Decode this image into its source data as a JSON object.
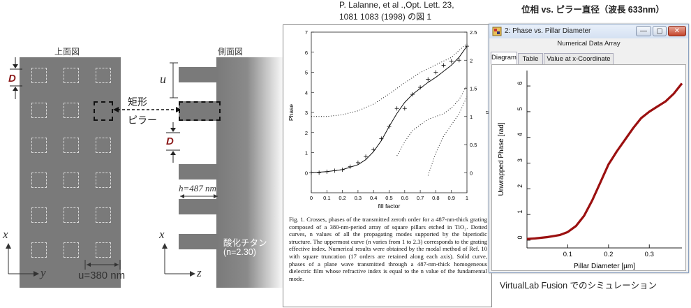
{
  "header": {
    "citation_line1": "P. Lalanne, et al .,Opt. Lett. 23,",
    "citation_line2": "1081 1083 (1998) の図 1",
    "right_title": "位相 vs. ピラー直径（波長 633nm）"
  },
  "top_view": {
    "title": "上面図",
    "d_label": "D",
    "x_axis": "x",
    "y_axis": "y",
    "period_label": "u=380 nm",
    "rows": 6,
    "cols": 3
  },
  "pillar_label": {
    "line1": "矩形",
    "line2": "ピラー"
  },
  "side_view": {
    "title": "側面図",
    "u_label": "u",
    "d_label": "D",
    "h_label": "h=487 nm",
    "x_axis": "x",
    "z_axis": "z",
    "material_line1": "酸化チタン",
    "material_line2": "(n=2.30)"
  },
  "paper_plot": {
    "xlabel": "fill factor",
    "ylabel_left": "Phase",
    "ylabel_right": "n",
    "x_ticks": [
      "0",
      "0.1",
      "0.2",
      "0.3",
      "0.4",
      "0.5",
      "0.6",
      "0.7",
      "0.8",
      "0.9",
      "1"
    ],
    "y_ticks_left": [
      "0",
      "1",
      "2",
      "3",
      "4",
      "5",
      "6",
      "7"
    ],
    "y_ticks_right": [
      "0",
      "0.5",
      "1",
      "1.5",
      "2",
      "2.5"
    ],
    "caption": "Fig. 1.   Crosses, phases of the transmitted zeroth order for a 487-nm-thick grating composed of a 380-nm-period array of square pillars etched in TiO₂.   Dotted curves, n values of all the propagating modes supported by the biperiodic structure.  The uppermost curve (n varies from 1 to 2.3) corresponds to the grating effective index.  Numerical results were obtained by the modal method of Ref. 10 with square truncation (17 orders are retained along each axis). Solid curve, phases of a plane wave transmitted through a 487-nm-thick homogeneous dielectric film whose refractive index is equal to the n value of the fundamental mode."
  },
  "app_window": {
    "title": "2: Phase vs. Pillar Diameter",
    "subtitle": "Numerical Data Array",
    "tabs": [
      "Diagram",
      "Table",
      "Value at x-Coordinate"
    ],
    "active_tab": 0,
    "btn_min": "—",
    "btn_max": "▢",
    "btn_close": "✕",
    "plot": {
      "xlabel": "Pillar Diameter [µm]",
      "ylabel": "Unwrapped Phase [rad]",
      "x_ticks": [
        "0.1",
        "0.2",
        "0.3"
      ],
      "y_ticks": [
        "0",
        "1",
        "2",
        "3",
        "4",
        "5",
        "6"
      ],
      "line_color": "#9b1010"
    }
  },
  "footer": {
    "sim_label": "VirtualLab Fusion でのシミュレーション"
  },
  "chart_data": [
    {
      "type": "scatter",
      "title": "",
      "xlabel": "fill factor",
      "ylabel": "Phase",
      "xlim": [
        0,
        1
      ],
      "ylim": [
        -1,
        7
      ],
      "ylim_right": [
        -0.357,
        2.5
      ],
      "series": [
        {
          "kind": "crosses",
          "x": [
            0,
            0.05,
            0.1,
            0.15,
            0.2,
            0.25,
            0.3,
            0.35,
            0.4,
            0.45,
            0.5,
            0.55,
            0.6,
            0.65,
            0.7,
            0.75,
            0.8,
            0.85,
            0.9,
            0.95,
            1.0
          ],
          "y": [
            0,
            0,
            0.05,
            0.1,
            0.15,
            0.3,
            0.5,
            0.8,
            1.15,
            1.7,
            2.3,
            3.2,
            3.2,
            3.9,
            4.25,
            4.65,
            5.0,
            5.35,
            5.55,
            5.6,
            6.3
          ]
        },
        {
          "kind": "solid",
          "x": [
            0,
            0.1,
            0.2,
            0.3,
            0.35,
            0.4,
            0.45,
            0.5,
            0.55,
            0.6,
            0.65,
            0.7,
            0.75,
            0.8,
            0.85,
            0.9,
            0.95,
            1.0
          ],
          "y": [
            0,
            0.05,
            0.15,
            0.4,
            0.65,
            1.05,
            1.6,
            2.3,
            2.95,
            3.5,
            3.9,
            4.2,
            4.5,
            4.75,
            5.05,
            5.35,
            5.75,
            6.3
          ]
        },
        {
          "kind": "dotted",
          "axis": "right",
          "x": [
            0,
            0.1,
            0.2,
            0.3,
            0.4,
            0.5,
            0.6,
            0.7,
            0.8,
            0.9,
            1.0
          ],
          "y": [
            1.0,
            1.0,
            1.03,
            1.1,
            1.22,
            1.4,
            1.6,
            1.78,
            1.92,
            2.05,
            2.3
          ]
        },
        {
          "kind": "dotted",
          "axis": "right",
          "x": [
            0.55,
            0.6,
            0.65,
            0.7,
            0.75,
            0.8,
            0.85,
            0.9,
            0.95,
            1.0
          ],
          "y": [
            0.3,
            0.55,
            0.75,
            0.85,
            0.95,
            1.0,
            1.05,
            1.15,
            1.3,
            1.55
          ]
        },
        {
          "kind": "dotted",
          "axis": "right",
          "x": [
            0.75,
            0.8,
            0.85,
            0.9,
            0.95,
            1.0
          ],
          "y": [
            -0.05,
            0.35,
            0.65,
            0.85,
            1.05,
            1.35
          ]
        }
      ]
    },
    {
      "type": "line",
      "title": "",
      "xlabel": "Pillar Diameter [µm]",
      "ylabel": "Unwrapped Phase [rad]",
      "xlim": [
        0,
        0.38
      ],
      "ylim": [
        -0.3,
        6.6
      ],
      "series": [
        {
          "x": [
            0,
            0.02,
            0.05,
            0.08,
            0.1,
            0.12,
            0.14,
            0.16,
            0.18,
            0.2,
            0.21,
            0.22,
            0.24,
            0.26,
            0.28,
            0.3,
            0.32,
            0.34,
            0.36,
            0.38
          ],
          "y": [
            0.05,
            0.07,
            0.12,
            0.2,
            0.32,
            0.55,
            0.95,
            1.55,
            2.25,
            2.95,
            3.2,
            3.45,
            3.9,
            4.35,
            4.75,
            5.0,
            5.2,
            5.4,
            5.7,
            6.1
          ]
        }
      ]
    }
  ]
}
